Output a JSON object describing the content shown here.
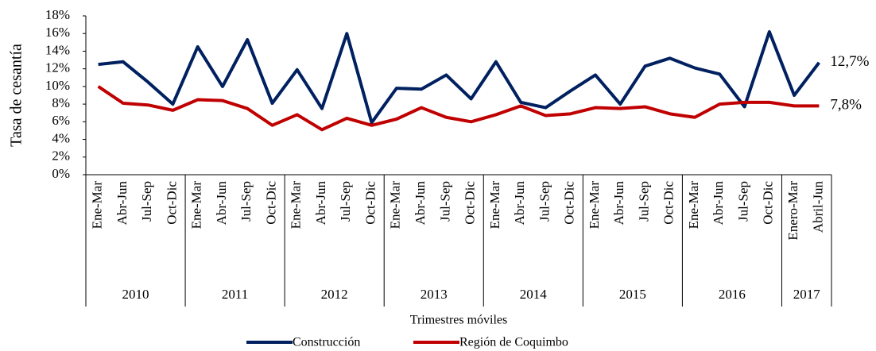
{
  "chart_data": {
    "type": "line",
    "y_label": "Tasa de cesantía",
    "x_label": "Trimestres móviles",
    "groups": [
      {
        "name": "2010",
        "categories": [
          "Ene-Mar",
          "Abr-Jun",
          "Jul-Sep",
          "Oct-Dic"
        ]
      },
      {
        "name": "2011",
        "categories": [
          "Ene-Mar",
          "Abr-Jun",
          "Jul-Sep",
          "Oct-Dic"
        ]
      },
      {
        "name": "2012",
        "categories": [
          "Ene-Mar",
          "Abr-Jun",
          "Jul-Sep",
          "Oct-Dic"
        ]
      },
      {
        "name": "2013",
        "categories": [
          "Ene-Mar",
          "Abr-Jun",
          "Jul-Sep",
          "Oct-Dic"
        ]
      },
      {
        "name": "2014",
        "categories": [
          "Ene-Mar",
          "Abr-Jun",
          "Jul-Sep",
          "Oct-Dic"
        ]
      },
      {
        "name": "2015",
        "categories": [
          "Ene-Mar",
          "Abr-Jun",
          "Jul-Sep",
          "Oct-Dic"
        ]
      },
      {
        "name": "2016",
        "categories": [
          "Ene-Mar",
          "Abr-Jun",
          "Jul-Sep",
          "Oct-Dic"
        ]
      },
      {
        "name": "2017",
        "categories": [
          "Enero-Mar",
          "Abril-Jun"
        ]
      }
    ],
    "series": [
      {
        "name": "Construcción",
        "color": "#002060",
        "values": [
          12.5,
          12.8,
          10.5,
          8.0,
          14.5,
          10.0,
          15.3,
          8.1,
          11.9,
          7.5,
          16.0,
          5.9,
          9.8,
          9.7,
          11.3,
          8.6,
          12.8,
          8.2,
          7.6,
          9.5,
          11.3,
          8.0,
          12.3,
          13.2,
          12.1,
          11.4,
          7.7,
          16.2,
          9.0,
          12.7
        ]
      },
      {
        "name": "Región de Coquimbo",
        "color": "#c00000",
        "values": [
          10.0,
          8.1,
          7.9,
          7.3,
          8.5,
          8.4,
          7.5,
          5.6,
          6.8,
          5.1,
          6.4,
          5.6,
          6.3,
          7.6,
          6.5,
          6.0,
          6.8,
          7.8,
          6.7,
          6.9,
          7.6,
          7.5,
          7.7,
          6.9,
          6.5,
          8.0,
          8.2,
          8.2,
          7.8,
          7.8
        ]
      }
    ],
    "annotations": [
      "12,7%",
      "7,8%"
    ],
    "ylim": [
      0,
      18
    ],
    "yticks": [
      {
        "value": 0,
        "label": "0%"
      },
      {
        "value": 2,
        "label": "2%"
      },
      {
        "value": 4,
        "label": "4%"
      },
      {
        "value": 6,
        "label": "6%"
      },
      {
        "value": 8,
        "label": "8%"
      },
      {
        "value": 10,
        "label": "10%"
      },
      {
        "value": 12,
        "label": "12%"
      },
      {
        "value": 14,
        "label": "14%"
      },
      {
        "value": 16,
        "label": "16%"
      },
      {
        "value": 18,
        "label": "18%"
      }
    ],
    "grid": false,
    "legend": "bottom"
  }
}
